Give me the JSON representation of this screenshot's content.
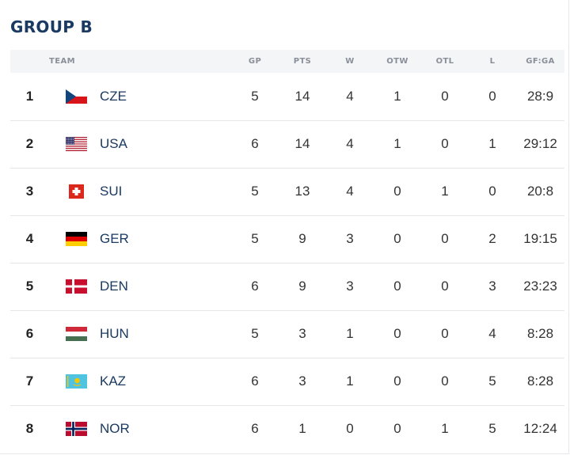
{
  "group_title": "GROUP B",
  "columns": {
    "team": "TEAM",
    "gp": "GP",
    "pts": "PTS",
    "w": "W",
    "otw": "OTW",
    "otl": "OTL",
    "l": "L",
    "gfga": "GF:GA"
  },
  "rows": [
    {
      "rank": "1",
      "team": "CZE",
      "flag": "czech-flag-icon",
      "gp": "5",
      "pts": "14",
      "w": "4",
      "otw": "1",
      "otl": "0",
      "l": "0",
      "gfga": "28:9"
    },
    {
      "rank": "2",
      "team": "USA",
      "flag": "usa-flag-icon",
      "gp": "6",
      "pts": "14",
      "w": "4",
      "otw": "1",
      "otl": "0",
      "l": "1",
      "gfga": "29:12"
    },
    {
      "rank": "3",
      "team": "SUI",
      "flag": "swiss-flag-icon",
      "gp": "5",
      "pts": "13",
      "w": "4",
      "otw": "0",
      "otl": "1",
      "l": "0",
      "gfga": "20:8"
    },
    {
      "rank": "4",
      "team": "GER",
      "flag": "german-flag-icon",
      "gp": "5",
      "pts": "9",
      "w": "3",
      "otw": "0",
      "otl": "0",
      "l": "2",
      "gfga": "19:15"
    },
    {
      "rank": "5",
      "team": "DEN",
      "flag": "danish-flag-icon",
      "gp": "6",
      "pts": "9",
      "w": "3",
      "otw": "0",
      "otl": "0",
      "l": "3",
      "gfga": "23:23"
    },
    {
      "rank": "6",
      "team": "HUN",
      "flag": "hungarian-flag-icon",
      "gp": "5",
      "pts": "3",
      "w": "1",
      "otw": "0",
      "otl": "0",
      "l": "4",
      "gfga": "8:28"
    },
    {
      "rank": "7",
      "team": "KAZ",
      "flag": "kazakh-flag-icon",
      "gp": "6",
      "pts": "3",
      "w": "1",
      "otw": "0",
      "otl": "0",
      "l": "5",
      "gfga": "8:28"
    },
    {
      "rank": "8",
      "team": "NOR",
      "flag": "norwegian-flag-icon",
      "gp": "6",
      "pts": "1",
      "w": "0",
      "otw": "0",
      "otl": "1",
      "l": "5",
      "gfga": "12:24"
    }
  ]
}
